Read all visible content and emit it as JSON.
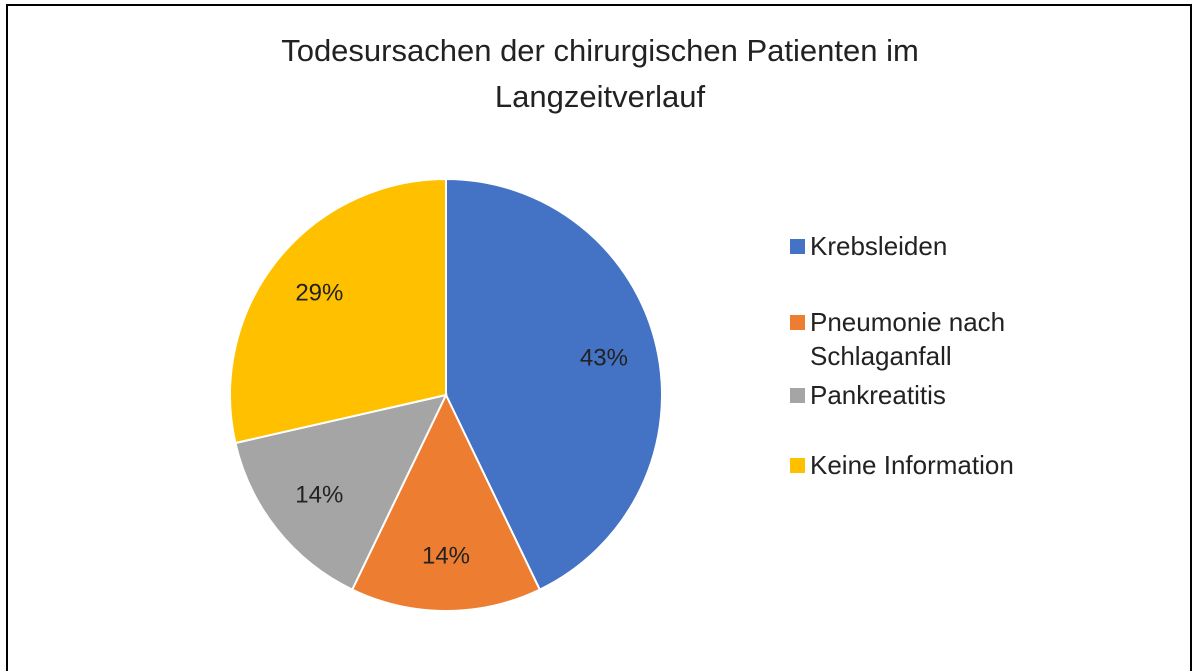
{
  "chart_data": {
    "type": "pie",
    "title": "Todesursachen der chirurgischen Patienten im Langzeitverlauf",
    "categories": [
      "Krebsleiden",
      "Pneumonie nach Schlaganfall",
      "Pankreatitis",
      "Keine Information"
    ],
    "values": [
      42.86,
      14.29,
      14.29,
      28.57
    ],
    "value_labels": [
      "43%",
      "14%",
      "14%",
      "29%"
    ],
    "colors": [
      "#4472c4",
      "#ed7d31",
      "#a5a5a5",
      "#ffc000"
    ],
    "legend": "right"
  }
}
